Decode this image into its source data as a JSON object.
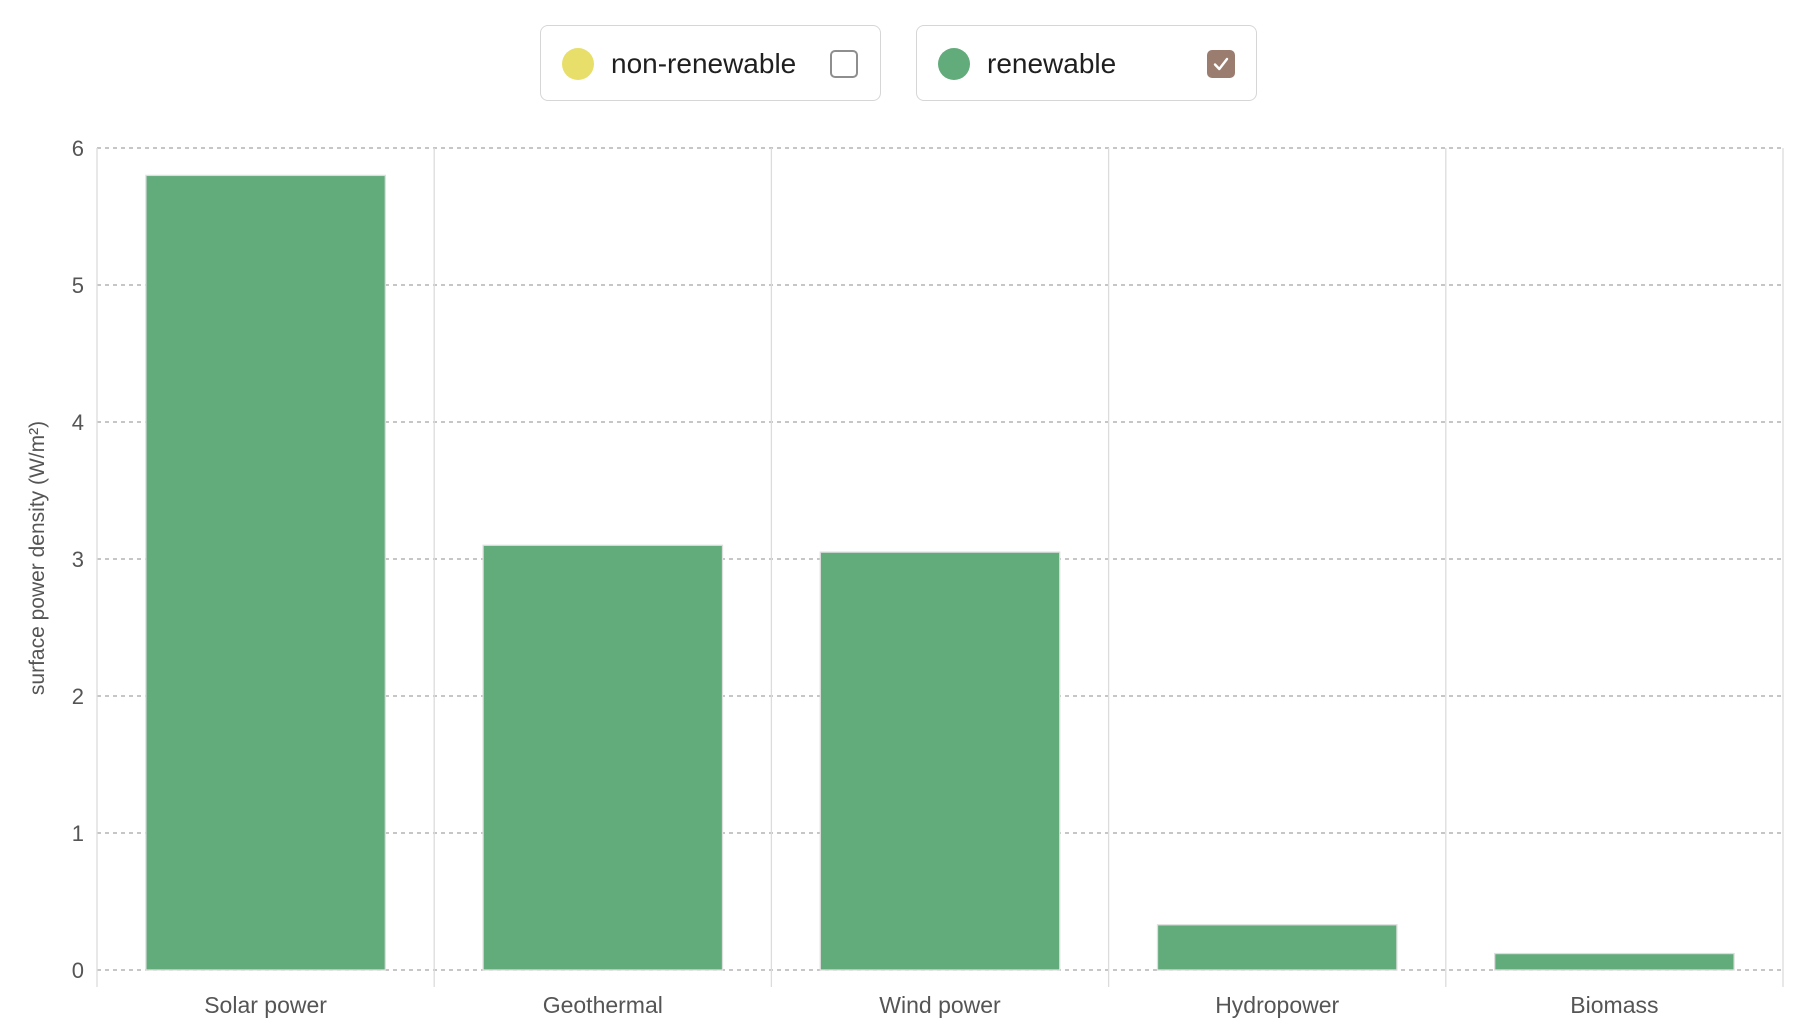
{
  "legend": {
    "items": [
      {
        "label": "non-renewable",
        "color": "#e8df6a",
        "checked": false
      },
      {
        "label": "renewable",
        "color": "#62ab7b",
        "checked": true
      }
    ]
  },
  "chart_data": {
    "type": "bar",
    "categories": [
      "Solar power",
      "Geothermal",
      "Wind power",
      "Hydropower",
      "Biomass"
    ],
    "series": [
      {
        "name": "renewable",
        "color": "#62ab7b",
        "values": [
          5.8,
          3.1,
          3.05,
          0.33,
          0.12
        ]
      }
    ],
    "title": "",
    "xlabel": "",
    "ylabel": "surface power density (W/m²)",
    "ylim": [
      0,
      6
    ],
    "yticks": [
      0,
      1,
      2,
      3,
      4,
      5,
      6
    ],
    "grid": true,
    "legend_position": "top-center"
  }
}
